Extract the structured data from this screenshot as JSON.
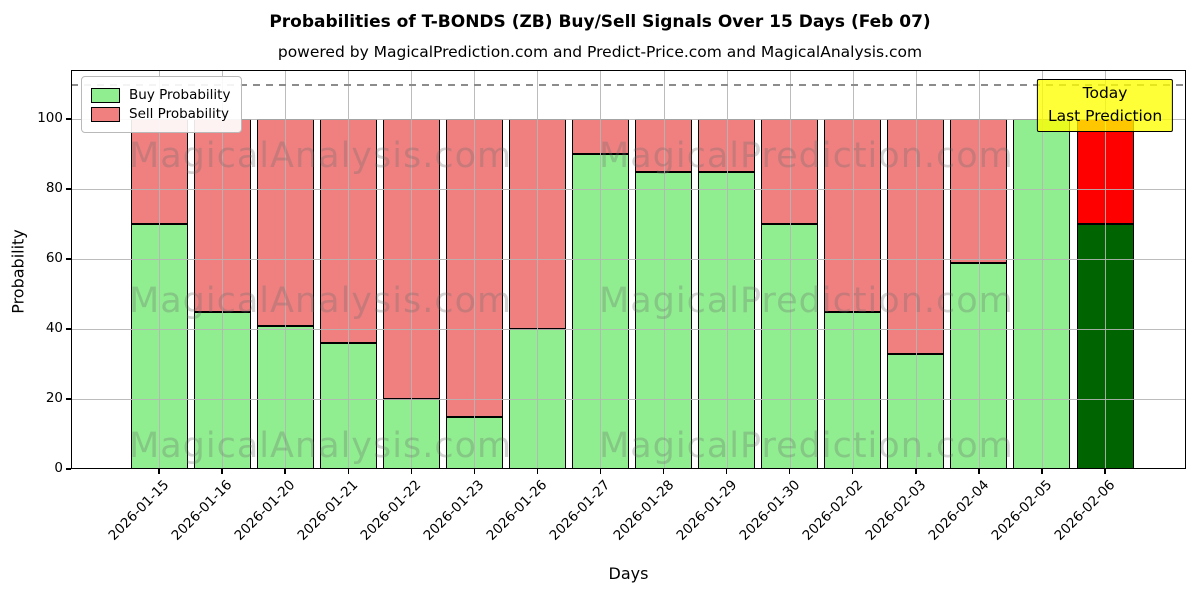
{
  "chart": {
    "title": "Probabilities of T-BONDS (ZB) Buy/Sell Signals Over 15 Days (Feb 07)",
    "subtitle": "powered by MagicalPrediction.com and Predict-Price.com and MagicalAnalysis.com",
    "xlabel": "Days",
    "ylabel": "Probability",
    "legend": [
      {
        "label": "Buy Probability",
        "color": "#90ee90"
      },
      {
        "label": "Sell Probability",
        "color": "#f08080"
      }
    ],
    "annotation": {
      "line1": "Today",
      "line2": "Last Prediction",
      "bg_color": "#ffff00"
    },
    "watermarks": [
      "MagicalAnalysis.com",
      "MagicalPrediction.com"
    ]
  },
  "chart_data": {
    "type": "bar",
    "stacked": true,
    "title": "Probabilities of T-BONDS (ZB) Buy/Sell Signals Over 15 Days (Feb 07)",
    "xlabel": "Days",
    "ylabel": "Probability",
    "categories": [
      "2026-01-15",
      "2026-01-16",
      "2026-01-20",
      "2026-01-21",
      "2026-01-22",
      "2026-01-23",
      "2026-01-26",
      "2026-01-27",
      "2026-01-28",
      "2026-01-29",
      "2026-01-30",
      "2026-02-02",
      "2026-02-03",
      "2026-02-04",
      "2026-02-05",
      "2026-02-06"
    ],
    "series": [
      {
        "name": "Buy Probability",
        "color": "#90ee90",
        "values": [
          70,
          45,
          41,
          36,
          20,
          15,
          40,
          90,
          85,
          85,
          70,
          45,
          33,
          59,
          100,
          70
        ]
      },
      {
        "name": "Sell Probability",
        "color": "#f08080",
        "values": [
          30,
          55,
          59,
          64,
          80,
          85,
          60,
          10,
          15,
          15,
          30,
          55,
          67,
          41,
          0,
          30
        ]
      }
    ],
    "last_bar_colors": {
      "buy": "#006400",
      "sell": "#ff0000"
    },
    "yticks": [
      0,
      20,
      40,
      60,
      80,
      100
    ],
    "ylim": [
      0,
      114
    ],
    "dashed_hline": 110,
    "grid": true,
    "legend_position": "upper left",
    "bar_edge_color": "#000000"
  }
}
